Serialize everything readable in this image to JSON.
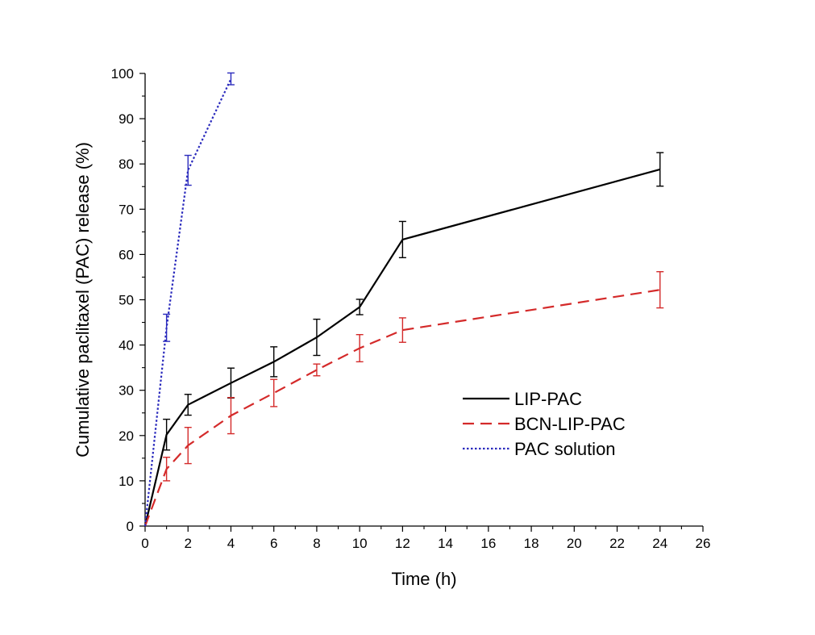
{
  "chart_data": {
    "type": "line",
    "title": "",
    "xlabel": "Time (h)",
    "ylabel": "Cumulative paclitaxel (PAC) release (%)",
    "xlim": [
      0,
      26
    ],
    "ylim": [
      0,
      100
    ],
    "x_ticks": [
      0,
      2,
      4,
      6,
      8,
      10,
      12,
      14,
      16,
      18,
      20,
      22,
      24,
      26
    ],
    "y_ticks": [
      0,
      10,
      20,
      30,
      40,
      50,
      60,
      70,
      80,
      90,
      100
    ],
    "grid": false,
    "legend_position": "center-right",
    "series": [
      {
        "name": "LIP-PAC",
        "color": "#000000",
        "line_style": "solid",
        "x": [
          0,
          1,
          2,
          4,
          6,
          8,
          10,
          12,
          24
        ],
        "y": [
          0,
          20.2,
          26.8,
          31.6,
          36.3,
          41.7,
          48.4,
          63.3,
          78.8
        ],
        "error": [
          0,
          3.4,
          2.3,
          3.3,
          3.3,
          4.0,
          1.7,
          4.0,
          3.7
        ]
      },
      {
        "name": "BCN-LIP-PAC",
        "color": "#d42a2a",
        "line_style": "dashed",
        "x": [
          0,
          1,
          2,
          4,
          6,
          8,
          10,
          12,
          24
        ],
        "y": [
          0,
          12.6,
          17.8,
          24.4,
          29.4,
          34.5,
          39.3,
          43.3,
          52.2
        ],
        "error": [
          0,
          2.6,
          4.0,
          4.0,
          3.0,
          1.3,
          3.0,
          2.7,
          4.0
        ]
      },
      {
        "name": "PAC solution",
        "color": "#2b2bbd",
        "line_style": "dotted",
        "x": [
          0,
          1,
          2,
          4
        ],
        "y": [
          0,
          43.8,
          78.6,
          98.8
        ],
        "error": [
          0,
          3.0,
          3.3,
          1.3
        ]
      }
    ]
  }
}
